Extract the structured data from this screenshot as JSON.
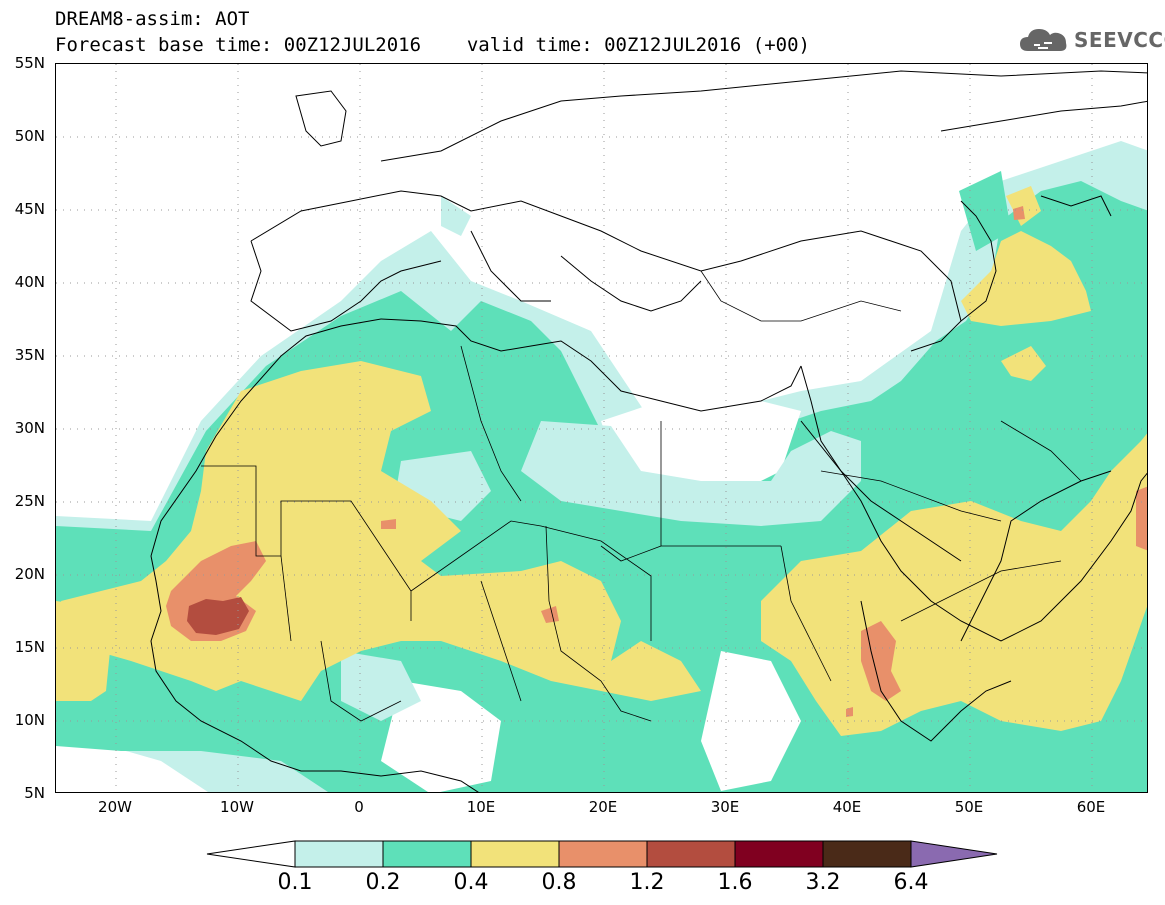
{
  "header": {
    "title_line1": "DREAM8-assim: AOT",
    "base_time_label": "Forecast base time: 00Z12JUL2016",
    "valid_time_label": "valid time: 00Z12JUL2016 (+00)"
  },
  "logo": {
    "text": "SEEVCCC",
    "icon": "cloud-icon"
  },
  "map": {
    "lat_labels": [
      "55N",
      "50N",
      "45N",
      "40N",
      "35N",
      "30N",
      "25N",
      "20N",
      "15N",
      "10N",
      "5N"
    ],
    "lon_labels": [
      "20W",
      "10W",
      "0",
      "10E",
      "20E",
      "30E",
      "40E",
      "50E",
      "60E"
    ]
  },
  "colorbar": {
    "levels": [
      "0.1",
      "0.2",
      "0.4",
      "0.8",
      "1.2",
      "1.6",
      "3.2",
      "6.4"
    ],
    "colors": [
      "#ffffff",
      "#c4f0ea",
      "#5ee0b9",
      "#f2e27a",
      "#e8906a",
      "#b34d3f",
      "#800020",
      "#4a2a18",
      "#8a6ab0"
    ]
  }
}
